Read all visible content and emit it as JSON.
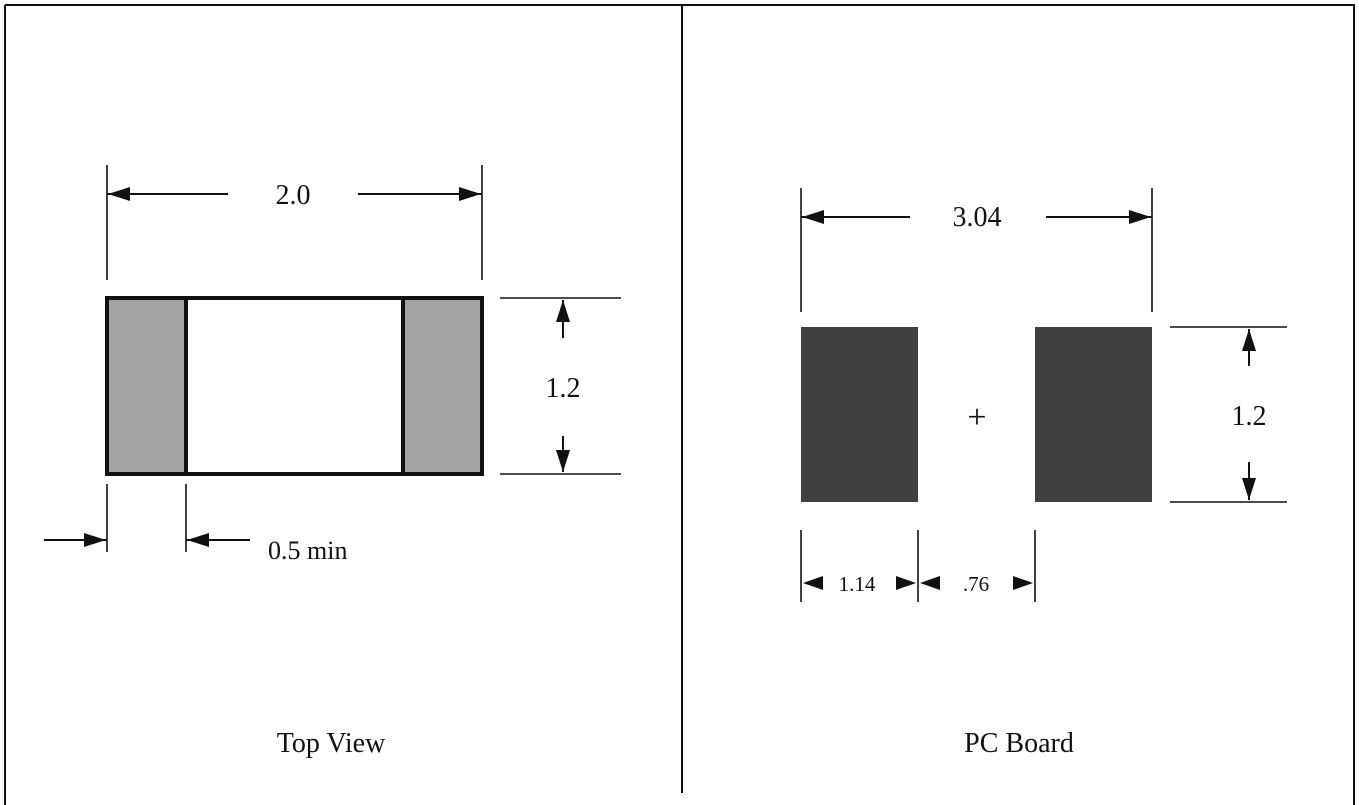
{
  "top_view": {
    "caption": "Top View",
    "width_label": "2.0",
    "height_label": "1.2",
    "terminal_label": "0.5 min",
    "terminal_color": "#a3a3a3",
    "body_color": "#ffffff"
  },
  "pc_board": {
    "caption": "PC Board",
    "span_label": "3.04",
    "height_label": "1.2",
    "pad_width_label": "1.14",
    "gap_label": ".76",
    "center_mark": "+",
    "pad_color": "#404040"
  },
  "colors": {
    "line": "#111111",
    "background": "#ffffff"
  }
}
